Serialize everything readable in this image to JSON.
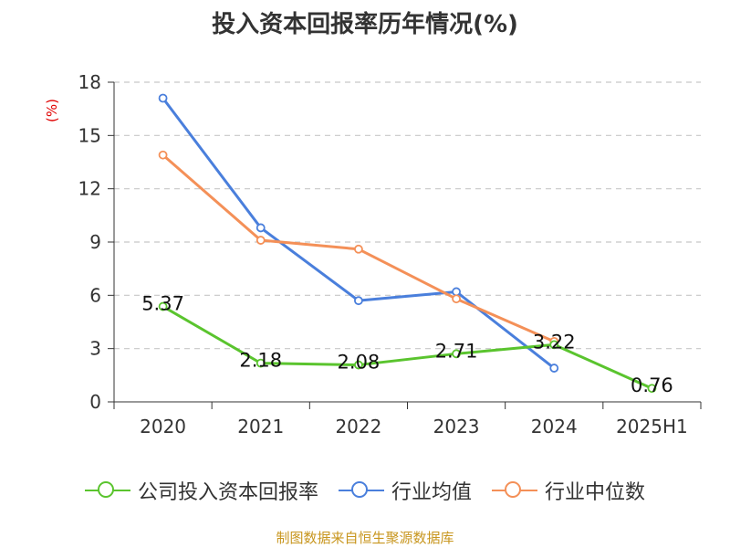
{
  "title": "投入资本回报率历年情况(%)",
  "footer": "制图数据来自恒生聚源数据库",
  "chart_data": {
    "type": "line",
    "title": "投入资本回报率历年情况(%)",
    "ylabel": "(%)",
    "xlabel": "",
    "categories": [
      "2020",
      "2021",
      "2022",
      "2023",
      "2024",
      "2025H1"
    ],
    "ylim": [
      0,
      18
    ],
    "yticks": [
      0,
      3,
      6,
      9,
      12,
      15,
      18
    ],
    "grid": "horizontal-dashed",
    "legend_position": "bottom",
    "series": [
      {
        "name": "公司投入资本回报率",
        "color": "#5ac42e",
        "values": [
          5.37,
          2.18,
          2.08,
          2.71,
          3.22,
          0.76
        ],
        "labels": [
          "5.37",
          "2.18",
          "2.08",
          "2.71",
          "3.22",
          "0.76"
        ]
      },
      {
        "name": "行业均值",
        "color": "#4a7fdc",
        "values": [
          17.1,
          9.8,
          5.7,
          6.2,
          1.9,
          null
        ]
      },
      {
        "name": "行业中位数",
        "color": "#f49058",
        "values": [
          13.9,
          9.1,
          8.6,
          5.8,
          3.4,
          null
        ]
      }
    ]
  }
}
